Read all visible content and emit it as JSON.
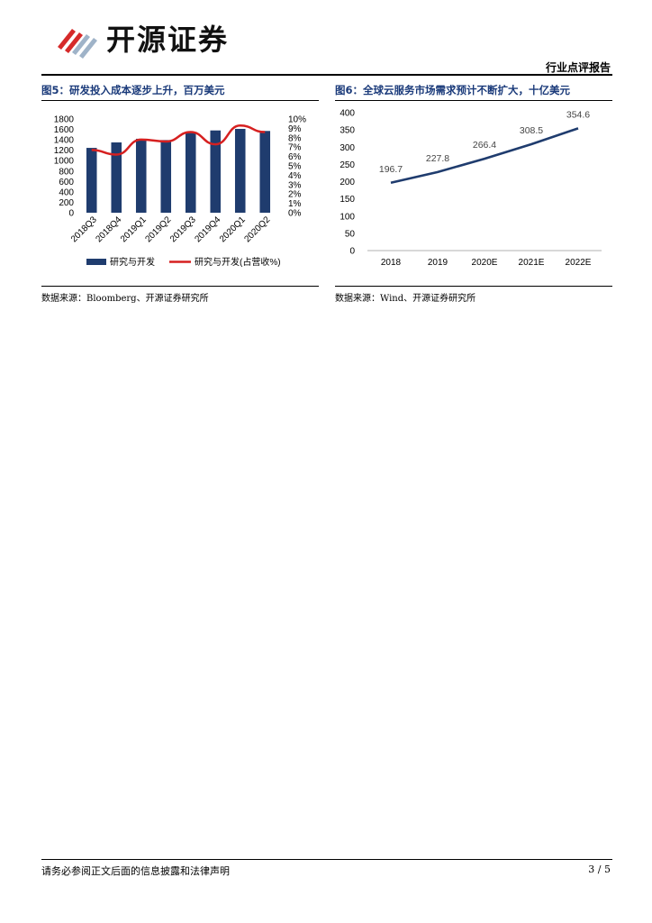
{
  "header": {
    "company_name": "开源证券",
    "report_type": "行业点评报告"
  },
  "figure5": {
    "title": "图5：研发投入成本逐步上升，百万美元",
    "source": "数据来源：Bloomberg、开源证券研究所"
  },
  "figure6": {
    "title": "图6：全球云服务市场需求预计不断扩大，十亿美元",
    "source": "数据来源：Wind、开源证券研究所"
  },
  "chart_data": [
    {
      "type": "bar",
      "categories": [
        "2018Q3",
        "2018Q4",
        "2019Q1",
        "2019Q2",
        "2019Q3",
        "2019Q4",
        "2020Q1",
        "2020Q2"
      ],
      "series": [
        {
          "name": "研究与开发",
          "type": "bar",
          "axis": "left",
          "values": [
            1245,
            1350,
            1420,
            1395,
            1530,
            1580,
            1610,
            1570
          ],
          "color": "#1f3c6e"
        },
        {
          "name": "研究与开发(占营收%)",
          "type": "line",
          "axis": "right",
          "values": [
            6.7,
            6.2,
            7.8,
            7.6,
            8.6,
            7.3,
            9.3,
            8.6
          ],
          "color": "#d62020"
        }
      ],
      "left_axis": {
        "ylim": [
          0,
          1800
        ],
        "ticks": [
          "1800",
          "1600",
          "1400",
          "1200",
          "1000",
          "800",
          "600",
          "400",
          "200",
          "0"
        ]
      },
      "right_axis": {
        "ylim": [
          0,
          10
        ],
        "ticks": [
          "10%",
          "9%",
          "8%",
          "7%",
          "6%",
          "5%",
          "4%",
          "3%",
          "2%",
          "1%",
          "0%"
        ]
      },
      "legend": "bottom",
      "title": ""
    },
    {
      "type": "line",
      "categories": [
        "2018",
        "2019",
        "2020E",
        "2021E",
        "2022E"
      ],
      "series": [
        {
          "name": "全球云服务市场",
          "values": [
            196.7,
            227.8,
            266.4,
            308.5,
            354.6
          ],
          "labels": [
            "196.7",
            "227.8",
            "266.4",
            "308.5",
            "354.6"
          ],
          "color": "#1f3c6e"
        }
      ],
      "ylim": [
        0,
        400
      ],
      "yticks": [
        "400",
        "350",
        "300",
        "250",
        "200",
        "150",
        "100",
        "50",
        "0"
      ],
      "title": ""
    }
  ],
  "footer": {
    "disclaimer": "请务必参阅正文后面的信息披露和法律声明",
    "page": "3 / 5"
  }
}
